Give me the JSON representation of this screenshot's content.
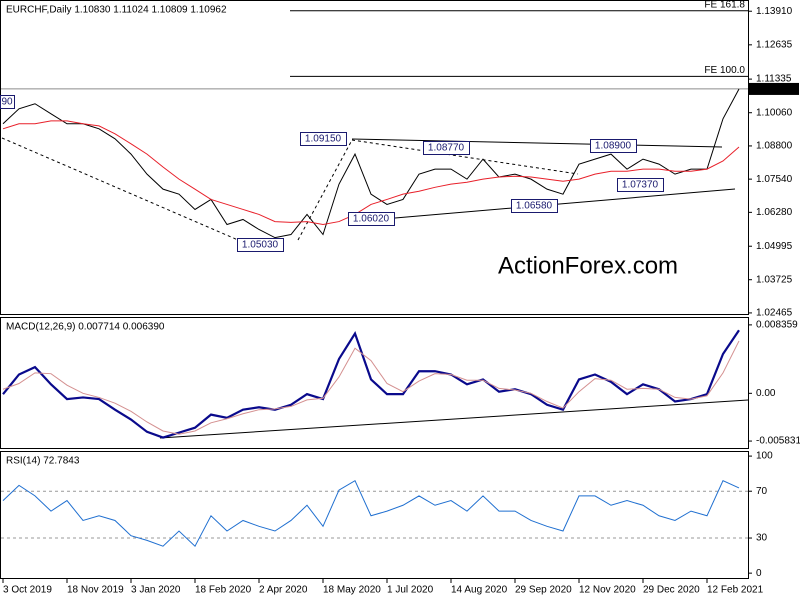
{
  "chart_data": [
    {
      "type": "line",
      "title": "EURCHF,Daily  1.10830 1.11024 1.10809 1.10962",
      "ylim": [
        1.02386,
        1.14298
      ],
      "yticks": [
        {
          "value": 1.1391,
          "label": "1.13910"
        },
        1.12635,
        1.11335,
        {
          "value": 1.1006,
          "label": "1.10060"
        },
        {
          "value": 1.088,
          "label": "1.08800"
        },
        {
          "value": 1.0754,
          "label": "1.07540"
        },
        {
          "value": 1.0628,
          "label": "1.06280"
        },
        1.04995,
        1.03725,
        1.02465
      ],
      "current_price": 1.10962,
      "fe_levels": [
        {
          "label": "FE 161.8",
          "value": 1.1393
        },
        {
          "label": "FE 100.0",
          "value": 1.1144
        }
      ],
      "annotations": [
        "90",
        "1.09150",
        "1.08770",
        "1.08900",
        "1.07370",
        "1.06580",
        "1.06020",
        "1.05030"
      ],
      "watermark": "ActionForex.com",
      "series": [
        {
          "color": "#000000",
          "values": [
            1.0964,
            1.1021,
            1.104,
            1.1002,
            1.0964,
            1.0964,
            1.0945,
            1.0907,
            1.0849,
            1.0773,
            1.0716,
            1.0697,
            1.0639,
            1.0677,
            1.0582,
            1.0601,
            1.0563,
            1.0532,
            1.0544,
            1.062,
            1.0544,
            1.0735,
            1.0849,
            1.0697,
            1.0658,
            1.0677,
            1.0773,
            1.0792,
            1.0792,
            1.0754,
            1.083,
            1.0762,
            1.0773,
            1.0754,
            1.0716,
            1.0697,
            1.0811,
            1.083,
            1.0849,
            1.0792,
            1.083,
            1.0811,
            1.0773,
            1.0792,
            1.0792,
            1.0983,
            1.1096
          ]
        },
        {
          "color": "#e8202a",
          "values": [
            1.0945,
            1.0964,
            1.0964,
            1.0975,
            1.0975,
            1.0964,
            1.0956,
            1.0926,
            1.0888,
            1.0849,
            1.08,
            1.0754,
            1.0716,
            1.0677,
            1.0658,
            1.0639,
            1.062,
            1.0593,
            1.059,
            1.0593,
            1.0582,
            1.0593,
            1.062,
            1.0658,
            1.0677,
            1.0697,
            1.0708,
            1.0723,
            1.0735,
            1.0742,
            1.0754,
            1.0762,
            1.0765,
            1.0762,
            1.0754,
            1.0746,
            1.0754,
            1.0773,
            1.0784,
            1.0784,
            1.0792,
            1.0792,
            1.0784,
            1.0784,
            1.0792,
            1.0823,
            1.0876
          ]
        }
      ]
    },
    {
      "type": "line",
      "title": "MACD(12,26,9) 0.007714 0.006390",
      "ylim": [
        -0.0068,
        0.0092
      ],
      "yticks": [
        0.008359,
        {
          "value": 0,
          "label": "0.00"
        },
        -0.005831
      ],
      "series": [
        {
          "color": "#0a0a8c",
          "values": [
            -0.0001,
            0.0023,
            0.0032,
            0.0011,
            -0.0007,
            -0.0005,
            -0.0007,
            -0.002,
            -0.0032,
            -0.0047,
            -0.0054,
            -0.0048,
            -0.0042,
            -0.0026,
            -0.003,
            -0.002,
            -0.0017,
            -0.002,
            -0.0014,
            -0.0001,
            -0.0007,
            0.0042,
            0.0073,
            0.0017,
            -0.0001,
            -0.0001,
            0.0027,
            0.0027,
            0.0023,
            0.0011,
            0.0017,
            0.0002,
            0.0005,
            -0.0001,
            -0.0014,
            -0.002,
            0.0017,
            0.0023,
            0.0014,
            -0.0001,
            0.0011,
            0.0005,
            -0.001,
            -0.0007,
            -0.0001,
            0.0048,
            0.0077
          ]
        },
        {
          "color": "#d49090",
          "values": [
            0.0005,
            0.0012,
            0.0025,
            0.0024,
            0.001,
            0.0,
            -0.0005,
            -0.0012,
            -0.0022,
            -0.0035,
            -0.0046,
            -0.005,
            -0.0046,
            -0.0036,
            -0.0031,
            -0.0025,
            -0.002,
            -0.0019,
            -0.0016,
            -0.0008,
            -0.0006,
            0.002,
            0.0055,
            0.004,
            0.0012,
            0.0002,
            0.0015,
            0.0024,
            0.0023,
            0.0016,
            0.0016,
            0.0006,
            0.0004,
            0.0,
            -0.001,
            -0.0018,
            0.0002,
            0.0018,
            0.0016,
            0.0005,
            0.0006,
            0.0005,
            -0.0005,
            -0.0007,
            -0.0003,
            0.0025,
            0.0064
          ]
        }
      ]
    },
    {
      "type": "line",
      "title": "RSI(14) 72.7843",
      "ylim": [
        -5,
        103.5
      ],
      "yticks": [
        100,
        70,
        30,
        0
      ],
      "levels": [
        70,
        30
      ],
      "categories": [
        "3 Oct 2019",
        null,
        null,
        null,
        "18 Nov 2019",
        null,
        null,
        null,
        "3 Jan 2020",
        null,
        null,
        null,
        "18 Feb 2020",
        null,
        null,
        null,
        "2 Apr 2020",
        null,
        null,
        null,
        "18 May 2020",
        null,
        null,
        null,
        "1 Jul 2020",
        null,
        null,
        null,
        "14 Aug 2020",
        null,
        null,
        null,
        "29 Sep 2020",
        null,
        null,
        null,
        "12 Nov 2020",
        null,
        null,
        null,
        "29 Dec 2020",
        null,
        null,
        null,
        "12 Feb 2021",
        null,
        null
      ],
      "series": [
        {
          "color": "#1f6fd0",
          "values": [
            62,
            75,
            66,
            53,
            62,
            45,
            49,
            45,
            32,
            28,
            23,
            36,
            23,
            49,
            36,
            45,
            40,
            36,
            45,
            58,
            40,
            71,
            79,
            49,
            53,
            58,
            66,
            58,
            62,
            53,
            66,
            53,
            53,
            45,
            40,
            36,
            66,
            66,
            58,
            62,
            58,
            49,
            45,
            53,
            49,
            79,
            72.78
          ]
        }
      ]
    }
  ]
}
